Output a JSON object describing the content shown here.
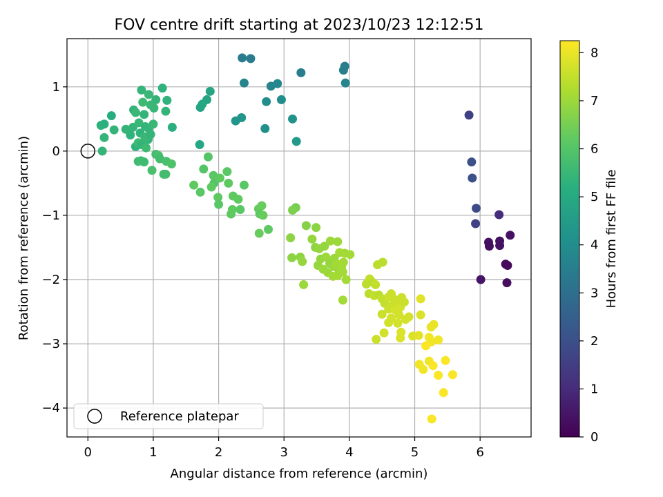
{
  "chart_data": {
    "type": "scatter",
    "title": "FOV centre drift starting at 2023/10/23 12:12:51",
    "xlabel": "Angular distance from reference (arcmin)",
    "ylabel": "Rotation from reference (arcmin)",
    "xlim": [
      -0.32,
      6.78
    ],
    "ylim": [
      -4.45,
      1.75
    ],
    "xticks": [
      0,
      1,
      2,
      3,
      4,
      5,
      6
    ],
    "xtick_labels": [
      "0",
      "1",
      "2",
      "3",
      "4",
      "5",
      "6"
    ],
    "yticks": [
      -4,
      -3,
      -2,
      -1,
      0,
      1
    ],
    "ytick_labels": [
      "−4",
      "−3",
      "−2",
      "−1",
      "0",
      "1"
    ],
    "grid": true,
    "colormap": "viridis",
    "colorbar": {
      "label": "Hours from first FF file",
      "range": [
        0,
        8.25
      ],
      "ticks": [
        0,
        1,
        2,
        3,
        4,
        5,
        6,
        7,
        8
      ],
      "tick_labels": [
        "0",
        "1",
        "2",
        "3",
        "4",
        "5",
        "6",
        "7",
        "8"
      ]
    },
    "legend": {
      "position": "lower-left",
      "entries": [
        "Reference platepar"
      ]
    },
    "reference_point": {
      "x": 0,
      "y": 0
    },
    "points": [
      [
        5.83,
        0.56,
        1.6
      ],
      [
        5.87,
        -0.17,
        2.0
      ],
      [
        5.88,
        -0.42,
        2.0
      ],
      [
        5.94,
        -0.89,
        1.8
      ],
      [
        5.93,
        -1.13,
        1.6
      ],
      [
        6.01,
        -2.0,
        0.5
      ],
      [
        6.13,
        -1.42,
        0.4
      ],
      [
        6.14,
        -1.48,
        0.3
      ],
      [
        6.29,
        -0.99,
        1.0
      ],
      [
        6.3,
        -1.4,
        0.4
      ],
      [
        6.3,
        -1.47,
        0.4
      ],
      [
        6.39,
        -1.76,
        0.2
      ],
      [
        6.42,
        -1.78,
        0.2
      ],
      [
        6.41,
        -2.05,
        0.3
      ],
      [
        6.46,
        -1.31,
        0.4
      ],
      [
        2.36,
        1.45,
        3.4
      ],
      [
        2.49,
        1.44,
        3.4
      ],
      [
        3.26,
        1.22,
        3.5
      ],
      [
        3.91,
        1.26,
        3.5
      ],
      [
        3.93,
        1.32,
        3.5
      ],
      [
        2.39,
        1.06,
        3.7
      ],
      [
        2.8,
        1.01,
        3.7
      ],
      [
        2.9,
        1.05,
        3.8
      ],
      [
        3.94,
        1.06,
        3.7
      ],
      [
        2.73,
        0.77,
        4.0
      ],
      [
        2.96,
        0.8,
        4.0
      ],
      [
        3.13,
        0.5,
        4.2
      ],
      [
        2.26,
        0.47,
        4.3
      ],
      [
        2.35,
        0.52,
        4.3
      ],
      [
        2.71,
        0.35,
        4.1
      ],
      [
        3.19,
        0.15,
        4.4
      ],
      [
        1.87,
        0.93,
        4.8
      ],
      [
        1.72,
        0.68,
        4.8
      ],
      [
        1.82,
        0.8,
        4.8
      ],
      [
        1.75,
        0.73,
        4.9
      ],
      [
        1.71,
        0.1,
        4.9
      ],
      [
        0.82,
        0.95,
        5.4
      ],
      [
        1.14,
        0.98,
        5.3
      ],
      [
        0.36,
        0.55,
        5.1
      ],
      [
        0.93,
        0.88,
        5.5
      ],
      [
        1.01,
        0.67,
        5.5
      ],
      [
        1.21,
        0.79,
        5.3
      ],
      [
        1.19,
        0.62,
        5.4
      ],
      [
        1.04,
        0.8,
        5.4
      ],
      [
        0.7,
        0.64,
        5.3
      ],
      [
        0.73,
        0.6,
        5.5
      ],
      [
        0.86,
        0.57,
        5.4
      ],
      [
        0.84,
        0.76,
        5.6
      ],
      [
        0.96,
        0.72,
        5.5
      ],
      [
        0.2,
        0.4,
        5.3
      ],
      [
        0.25,
        0.42,
        5.2
      ],
      [
        0.4,
        0.33,
        5.4
      ],
      [
        0.58,
        0.34,
        5.4
      ],
      [
        0.69,
        0.37,
        5.4
      ],
      [
        0.65,
        0.25,
        5.3
      ],
      [
        0.78,
        0.44,
        5.5
      ],
      [
        0.8,
        0.28,
        5.3
      ],
      [
        0.88,
        0.38,
        5.4
      ],
      [
        0.93,
        0.35,
        5.4
      ],
      [
        1.0,
        0.42,
        5.5
      ],
      [
        0.92,
        0.18,
        5.4
      ],
      [
        0.87,
        0.22,
        5.5
      ],
      [
        0.96,
        0.26,
        5.4
      ],
      [
        1.29,
        0.37,
        5.2
      ],
      [
        0.25,
        0.21,
        5.4
      ],
      [
        0.73,
        0.07,
        5.3
      ],
      [
        0.77,
        0.13,
        5.6
      ],
      [
        0.82,
        0.1,
        5.4
      ],
      [
        0.89,
        0.05,
        5.6
      ],
      [
        0.22,
        0.0,
        5.4
      ],
      [
        0.77,
        -0.16,
        5.6
      ],
      [
        0.81,
        -0.15,
        5.7
      ],
      [
        0.86,
        -0.17,
        5.6
      ],
      [
        1.04,
        -0.05,
        5.7
      ],
      [
        1.08,
        -0.07,
        5.8
      ],
      [
        1.1,
        -0.12,
        5.7
      ],
      [
        1.2,
        -0.16,
        5.8
      ],
      [
        1.28,
        -0.2,
        5.9
      ],
      [
        0.98,
        -0.3,
        5.8
      ],
      [
        1.16,
        -0.36,
        5.7
      ],
      [
        1.19,
        -0.36,
        5.7
      ],
      [
        1.84,
        -0.09,
        6.0
      ],
      [
        1.77,
        -0.28,
        6.0
      ],
      [
        1.62,
        -0.53,
        6.2
      ],
      [
        1.72,
        -0.64,
        6.1
      ],
      [
        1.92,
        -0.38,
        6.1
      ],
      [
        1.93,
        -0.5,
        6.0
      ],
      [
        1.89,
        -0.56,
        6.2
      ],
      [
        2.02,
        -0.42,
        6.2
      ],
      [
        2.13,
        -0.32,
        6.1
      ],
      [
        2.15,
        -0.5,
        6.2
      ],
      [
        2.39,
        -0.53,
        6.1
      ],
      [
        1.99,
        -0.72,
        6.2
      ],
      [
        2.0,
        -0.83,
        6.1
      ],
      [
        2.22,
        -0.7,
        6.2
      ],
      [
        2.3,
        -0.75,
        6.2
      ],
      [
        2.33,
        -0.91,
        6.1
      ],
      [
        2.21,
        -0.91,
        6.2
      ],
      [
        2.19,
        -0.98,
        6.2
      ],
      [
        2.61,
        -0.9,
        6.3
      ],
      [
        2.66,
        -0.85,
        6.3
      ],
      [
        2.63,
        -0.98,
        6.2
      ],
      [
        2.68,
        -1.0,
        6.3
      ],
      [
        2.62,
        -1.28,
        6.3
      ],
      [
        2.76,
        -1.22,
        6.2
      ],
      [
        3.18,
        -0.88,
        6.5
      ],
      [
        3.13,
        -0.92,
        6.6
      ],
      [
        3.34,
        -1.16,
        6.7
      ],
      [
        3.49,
        -1.19,
        6.8
      ],
      [
        3.1,
        -1.35,
        6.8
      ],
      [
        3.12,
        -1.66,
        6.8
      ],
      [
        3.25,
        -1.65,
        6.8
      ],
      [
        3.28,
        -1.72,
        6.9
      ],
      [
        3.43,
        -1.37,
        6.9
      ],
      [
        3.48,
        -1.5,
        6.8
      ],
      [
        3.54,
        -1.52,
        6.9
      ],
      [
        3.62,
        -1.48,
        6.9
      ],
      [
        3.71,
        -1.4,
        7.0
      ],
      [
        3.82,
        -1.41,
        7.0
      ],
      [
        3.56,
        -1.68,
        6.9
      ],
      [
        3.64,
        -1.65,
        7.0
      ],
      [
        3.52,
        -1.78,
        6.9
      ],
      [
        3.6,
        -1.84,
        7.0
      ],
      [
        3.7,
        -1.75,
        6.9
      ],
      [
        3.77,
        -1.67,
        7.0
      ],
      [
        3.85,
        -1.58,
        7.1
      ],
      [
        3.93,
        -1.59,
        7.1
      ],
      [
        3.77,
        -1.8,
        7.0
      ],
      [
        3.81,
        -1.76,
        7.1
      ],
      [
        3.84,
        -1.85,
        7.0
      ],
      [
        3.88,
        -1.8,
        7.1
      ],
      [
        3.91,
        -1.73,
        7.1
      ],
      [
        3.67,
        -1.89,
        7.0
      ],
      [
        3.75,
        -1.95,
        7.1
      ],
      [
        3.82,
        -1.94,
        7.1
      ],
      [
        3.95,
        -2.0,
        7.1
      ],
      [
        3.9,
        -1.88,
        7.1
      ],
      [
        4.01,
        -1.61,
        7.1
      ],
      [
        3.3,
        -2.08,
        7.0
      ],
      [
        3.9,
        -2.32,
        7.1
      ],
      [
        4.43,
        -1.77,
        7.4
      ],
      [
        4.51,
        -1.73,
        7.4
      ],
      [
        4.26,
        -2.07,
        7.4
      ],
      [
        4.31,
        -1.99,
        7.5
      ],
      [
        4.35,
        -2.04,
        7.4
      ],
      [
        4.3,
        -2.22,
        7.4
      ],
      [
        4.38,
        -2.25,
        7.5
      ],
      [
        4.4,
        -2.08,
        7.5
      ],
      [
        4.45,
        -2.24,
        7.4
      ],
      [
        4.5,
        -2.3,
        7.5
      ],
      [
        4.54,
        -2.37,
        7.5
      ],
      [
        4.6,
        -2.27,
        7.6
      ],
      [
        4.64,
        -2.22,
        7.6
      ],
      [
        4.68,
        -2.3,
        7.6
      ],
      [
        4.66,
        -2.4,
        7.6
      ],
      [
        4.72,
        -2.34,
        7.6
      ],
      [
        4.78,
        -2.43,
        7.7
      ],
      [
        4.8,
        -2.28,
        7.6
      ],
      [
        4.84,
        -2.35,
        7.6
      ],
      [
        4.6,
        -2.46,
        7.6
      ],
      [
        4.7,
        -2.47,
        7.7
      ],
      [
        4.5,
        -2.54,
        7.6
      ],
      [
        4.64,
        -2.6,
        7.7
      ],
      [
        4.76,
        -2.55,
        7.7
      ],
      [
        4.86,
        -2.62,
        7.7
      ],
      [
        4.6,
        -2.67,
        7.7
      ],
      [
        4.74,
        -2.68,
        7.7
      ],
      [
        4.53,
        -2.83,
        7.7
      ],
      [
        4.41,
        -2.93,
        7.6
      ],
      [
        4.79,
        -2.82,
        7.8
      ],
      [
        4.78,
        -2.91,
        7.8
      ],
      [
        4.97,
        -2.88,
        7.8
      ],
      [
        4.91,
        -2.58,
        7.7
      ],
      [
        5.09,
        -2.55,
        7.8
      ],
      [
        5.09,
        -2.3,
        7.9
      ],
      [
        5.06,
        -2.87,
        7.9
      ],
      [
        5.25,
        -2.74,
        8.0
      ],
      [
        5.29,
        -2.7,
        8.0
      ],
      [
        5.22,
        -2.9,
        8.1
      ],
      [
        5.25,
        -2.97,
        8.1
      ],
      [
        5.36,
        -2.94,
        8.1
      ],
      [
        5.07,
        -3.32,
        8.1
      ],
      [
        5.13,
        -3.4,
        8.1
      ],
      [
        5.17,
        -3.03,
        8.2
      ],
      [
        5.22,
        -3.27,
        8.1
      ],
      [
        5.28,
        -3.34,
        8.2
      ],
      [
        5.36,
        -3.49,
        8.2
      ],
      [
        5.47,
        -3.26,
        8.2
      ],
      [
        5.58,
        -3.48,
        8.2
      ],
      [
        5.44,
        -3.76,
        8.2
      ],
      [
        5.26,
        -4.17,
        8.2
      ]
    ]
  }
}
